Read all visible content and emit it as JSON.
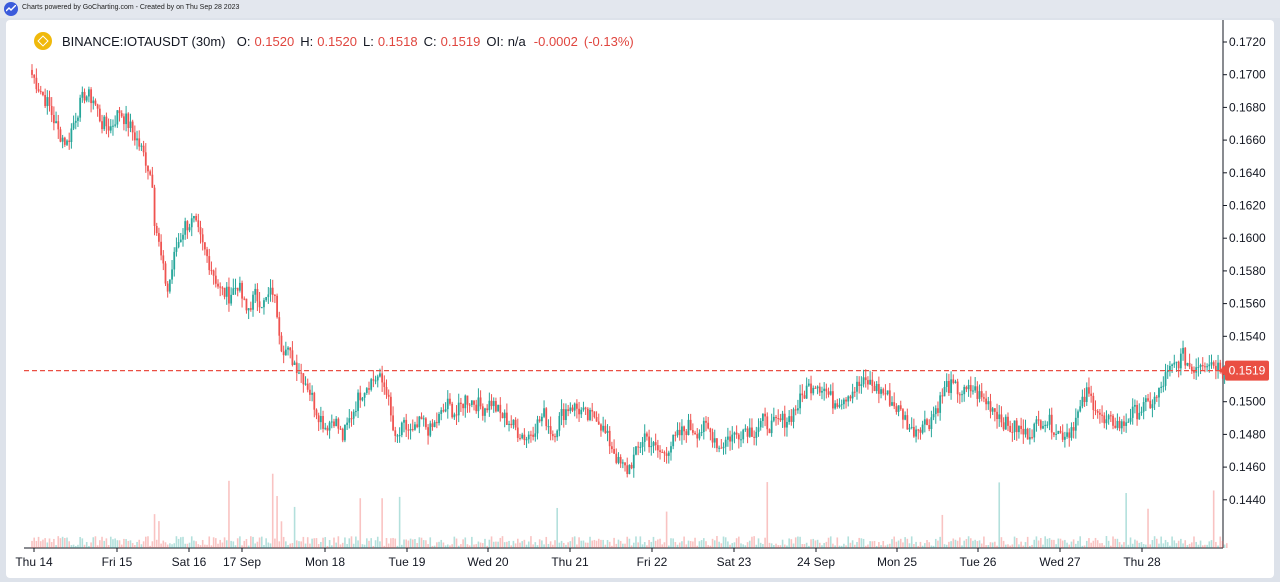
{
  "header": {
    "credit": "Charts powered by GoCharting.com - Created by  on Thu Sep 28 2023"
  },
  "legend": {
    "symbol": "BINANCE:IOTAUSDT (30m)",
    "o_label": "O:",
    "o_value": "0.1520",
    "h_label": "H:",
    "h_value": "0.1520",
    "l_label": "L:",
    "l_value": "0.1518",
    "c_label": "C:",
    "c_value": "0.1519",
    "oi_label": "OI:",
    "oi_value": "n/a",
    "change": "-0.0002",
    "change_pct": "(-0.13%)"
  },
  "colors": {
    "up": "#26a69a",
    "down": "#ef5350",
    "last_price": "#ea4f43"
  },
  "chart_data": {
    "type": "candlestick",
    "title": "",
    "symbol": "BINANCE:IOTAUSDT",
    "interval": "30m",
    "last_price": 0.1519,
    "ylim": [
      0.143,
      0.173
    ],
    "y_ticks": [
      "0.1720",
      "0.1700",
      "0.1680",
      "0.1660",
      "0.1640",
      "0.1620",
      "0.1600",
      "0.1580",
      "0.1560",
      "0.1540",
      "0.1500",
      "0.1480",
      "0.1460",
      "0.1440"
    ],
    "x_ticks": [
      "Thu 14",
      "Fri 15",
      "Sat 16",
      "17 Sep",
      "Mon 18",
      "Tue 19",
      "Wed 20",
      "Thu 21",
      "Fri 22",
      "Sat 23",
      "24 Sep",
      "Mon 25",
      "Tue 26",
      "Wed 27",
      "Thu 28"
    ],
    "grid": false,
    "close_path": [
      [
        0,
        0.17
      ],
      [
        4,
        0.169
      ],
      [
        8,
        0.168
      ],
      [
        12,
        0.1665
      ],
      [
        16,
        0.1658
      ],
      [
        20,
        0.1675
      ],
      [
        24,
        0.1688
      ],
      [
        28,
        0.1685
      ],
      [
        32,
        0.167
      ],
      [
        36,
        0.1668
      ],
      [
        40,
        0.1678
      ],
      [
        44,
        0.167
      ],
      [
        48,
        0.166
      ],
      [
        52,
        0.1648
      ],
      [
        55,
        0.1635
      ],
      [
        56,
        0.1612
      ],
      [
        60,
        0.158
      ],
      [
        62,
        0.1568
      ],
      [
        66,
        0.1595
      ],
      [
        70,
        0.1608
      ],
      [
        74,
        0.161
      ],
      [
        78,
        0.1595
      ],
      [
        82,
        0.1582
      ],
      [
        86,
        0.1568
      ],
      [
        90,
        0.1565
      ],
      [
        94,
        0.1572
      ],
      [
        98,
        0.1555
      ],
      [
        102,
        0.1565
      ],
      [
        106,
        0.156
      ],
      [
        110,
        0.1568
      ],
      [
        112,
        0.1555
      ],
      [
        114,
        0.1535
      ],
      [
        118,
        0.1528
      ],
      [
        122,
        0.152
      ],
      [
        126,
        0.151
      ],
      [
        130,
        0.1495
      ],
      [
        134,
        0.1485
      ],
      [
        138,
        0.149
      ],
      [
        142,
        0.1478
      ],
      [
        146,
        0.1492
      ],
      [
        150,
        0.1505
      ],
      [
        154,
        0.1512
      ],
      [
        158,
        0.1515
      ],
      [
        162,
        0.1508
      ],
      [
        164,
        0.149
      ],
      [
        166,
        0.1475
      ],
      [
        170,
        0.1485
      ],
      [
        174,
        0.148
      ],
      [
        178,
        0.1488
      ],
      [
        182,
        0.1482
      ],
      [
        186,
        0.149
      ],
      [
        190,
        0.1498
      ],
      [
        194,
        0.1492
      ],
      [
        198,
        0.1502
      ],
      [
        202,
        0.15
      ],
      [
        206,
        0.1496
      ],
      [
        210,
        0.15
      ],
      [
        214,
        0.1492
      ],
      [
        218,
        0.1488
      ],
      [
        222,
        0.1482
      ],
      [
        226,
        0.1478
      ],
      [
        230,
        0.1485
      ],
      [
        234,
        0.1492
      ],
      [
        238,
        0.148
      ],
      [
        242,
        0.1492
      ],
      [
        246,
        0.1498
      ],
      [
        250,
        0.1495
      ],
      [
        254,
        0.149
      ],
      [
        258,
        0.1492
      ],
      [
        262,
        0.148
      ],
      [
        266,
        0.147
      ],
      [
        268,
        0.1462
      ],
      [
        272,
        0.1458
      ],
      [
        276,
        0.1468
      ],
      [
        280,
        0.148
      ],
      [
        284,
        0.1472
      ],
      [
        288,
        0.1468
      ],
      [
        292,
        0.1474
      ],
      [
        296,
        0.148
      ],
      [
        300,
        0.1485
      ],
      [
        304,
        0.1482
      ],
      [
        308,
        0.1484
      ],
      [
        312,
        0.1478
      ],
      [
        314,
        0.1472
      ],
      [
        318,
        0.1478
      ],
      [
        322,
        0.148
      ],
      [
        326,
        0.1484
      ],
      [
        330,
        0.1482
      ],
      [
        334,
        0.1488
      ],
      [
        338,
        0.1485
      ],
      [
        342,
        0.1488
      ],
      [
        346,
        0.149
      ],
      [
        350,
        0.1498
      ],
      [
        354,
        0.1508
      ],
      [
        358,
        0.1512
      ],
      [
        362,
        0.1508
      ],
      [
        366,
        0.15
      ],
      [
        370,
        0.1502
      ],
      [
        374,
        0.1506
      ],
      [
        378,
        0.151
      ],
      [
        382,
        0.1512
      ],
      [
        386,
        0.1508
      ],
      [
        390,
        0.1505
      ],
      [
        394,
        0.1498
      ],
      [
        398,
        0.1492
      ],
      [
        402,
        0.1482
      ],
      [
        406,
        0.1486
      ],
      [
        410,
        0.1488
      ],
      [
        414,
        0.1498
      ],
      [
        418,
        0.151
      ],
      [
        422,
        0.1508
      ],
      [
        426,
        0.1505
      ],
      [
        430,
        0.1508
      ],
      [
        434,
        0.1502
      ],
      [
        438,
        0.1498
      ],
      [
        442,
        0.1492
      ],
      [
        446,
        0.1484
      ],
      [
        450,
        0.1484
      ],
      [
        454,
        0.148
      ],
      [
        458,
        0.1484
      ],
      [
        462,
        0.149
      ],
      [
        466,
        0.1486
      ],
      [
        470,
        0.148
      ],
      [
        474,
        0.1482
      ],
      [
        478,
        0.1492
      ],
      [
        482,
        0.1505
      ],
      [
        486,
        0.1498
      ],
      [
        490,
        0.1486
      ],
      [
        494,
        0.1488
      ],
      [
        498,
        0.1485
      ],
      [
        502,
        0.1492
      ],
      [
        506,
        0.1495
      ],
      [
        510,
        0.1498
      ],
      [
        514,
        0.1502
      ],
      [
        518,
        0.1515
      ],
      [
        522,
        0.1522
      ],
      [
        526,
        0.1528
      ],
      [
        530,
        0.152
      ],
      [
        534,
        0.1525
      ],
      [
        538,
        0.1525
      ],
      [
        542,
        0.1522
      ],
      [
        546,
        0.152
      ]
    ],
    "volume_note": "volume bars at bottom"
  }
}
